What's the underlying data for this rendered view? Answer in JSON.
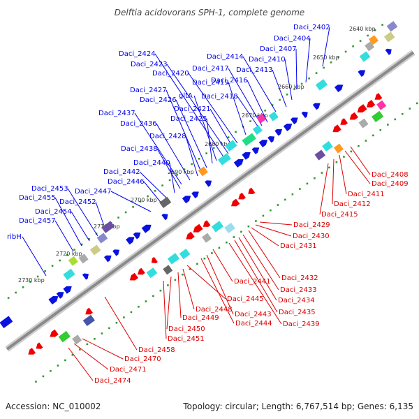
{
  "title": "Delftia acidovorans SPH-1, complete genome",
  "accession": "Accession: NC_010002",
  "summary": "Topology: circular; Length: 6,767,514 bp; Genes: 6,135",
  "colors": {
    "forward_label": "#0000ee",
    "reverse_label": "#dd0000",
    "forward_gene": "#0a12e0",
    "reverse_gene": "#ee0000",
    "backbone": "#888888",
    "tick_dots": "#2e9a2e"
  },
  "kbp_ticks": [
    "2640 kbp",
    "2650 kbp",
    "2660 kbp",
    "2670 kbp",
    "2680 kbp",
    "2690 kbp",
    "2700 kbp",
    "2710 kbp",
    "2720 kbp",
    "2730 kbp"
  ],
  "forward_labels": [
    "Daci_2402",
    "Daci_2404",
    "Daci_2407",
    "Daci_2410",
    "Daci_2413",
    "Daci_2414",
    "Daci_2416",
    "Daci_2417",
    "Daci_2418",
    "Daci_2419",
    "Daci_2420",
    "Daci_2421",
    "Daci_2423",
    "Daci_2424",
    "gltA",
    "Daci_2425",
    "Daci_2426",
    "Daci_2427",
    "Daci_2428",
    "Daci_2436",
    "Daci_2437",
    "Daci_2438",
    "Daci_2440",
    "Daci_2442",
    "Daci_2446",
    "Daci_2447",
    "Daci_2452",
    "Daci_2453",
    "Daci_2454",
    "Daci_2455",
    "Daci_2457",
    "ribH"
  ],
  "reverse_labels": [
    "Daci_2408",
    "Daci_2409",
    "Daci_2411",
    "Daci_2412",
    "Daci_2415",
    "Daci_2429",
    "Daci_2430",
    "Daci_2431",
    "Daci_2432",
    "Daci_2433",
    "Daci_2434",
    "Daci_2435",
    "Daci_2439",
    "Daci_2441",
    "Daci_2443",
    "Daci_2444",
    "Daci_2445",
    "Daci_2448",
    "Daci_2449",
    "Daci_2450",
    "Daci_2451",
    "Daci_2458",
    "Daci_2470",
    "Daci_2471",
    "Daci_2474"
  ]
}
